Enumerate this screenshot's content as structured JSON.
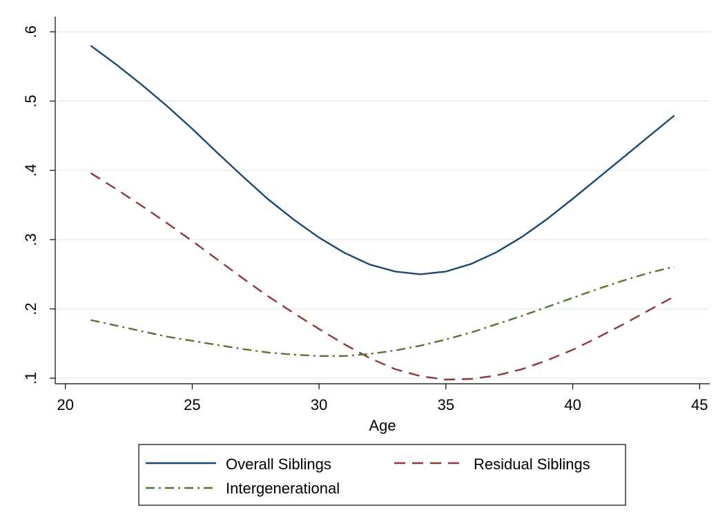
{
  "chart_data": {
    "type": "line",
    "title": "",
    "xlabel": "Age",
    "ylabel": "",
    "xlim": [
      19.6,
      45.4
    ],
    "ylim": [
      0.092,
      0.62
    ],
    "grid": true,
    "legend_position": "bottom",
    "xticks": [
      {
        "value": 20,
        "label": "20"
      },
      {
        "value": 25,
        "label": "25"
      },
      {
        "value": 30,
        "label": "30"
      },
      {
        "value": 35,
        "label": "35"
      },
      {
        "value": 40,
        "label": "40"
      },
      {
        "value": 45,
        "label": "45"
      }
    ],
    "yticks": [
      {
        "value": 0.1,
        "label": ".1"
      },
      {
        "value": 0.2,
        "label": ".2"
      },
      {
        "value": 0.3,
        "label": ".3"
      },
      {
        "value": 0.4,
        "label": ".4"
      },
      {
        "value": 0.5,
        "label": ".5"
      },
      {
        "value": 0.6,
        "label": ".6"
      }
    ],
    "x": [
      21,
      22,
      23,
      24,
      25,
      26,
      27,
      28,
      29,
      30,
      31,
      32,
      33,
      34,
      35,
      36,
      37,
      38,
      39,
      40,
      41,
      42,
      43,
      44
    ],
    "series": [
      {
        "name": "Overall Siblings",
        "color": "#1a476f",
        "dash": "solid",
        "values": [
          0.58,
          0.553,
          0.524,
          0.493,
          0.46,
          0.425,
          0.391,
          0.358,
          0.329,
          0.303,
          0.281,
          0.264,
          0.254,
          0.25,
          0.254,
          0.265,
          0.282,
          0.304,
          0.33,
          0.359,
          0.389,
          0.419,
          0.449,
          0.479
        ]
      },
      {
        "name": "Residual Siblings",
        "color": "#90353b",
        "dash": "dash",
        "values": [
          0.396,
          0.373,
          0.349,
          0.324,
          0.298,
          0.271,
          0.244,
          0.218,
          0.194,
          0.171,
          0.149,
          0.129,
          0.113,
          0.103,
          0.098,
          0.099,
          0.104,
          0.113,
          0.126,
          0.141,
          0.159,
          0.178,
          0.198,
          0.218
        ]
      },
      {
        "name": "Intergenerational",
        "color": "#55752f",
        "dash": "dashdot",
        "values": [
          0.184,
          0.176,
          0.168,
          0.16,
          0.154,
          0.148,
          0.142,
          0.137,
          0.134,
          0.132,
          0.132,
          0.135,
          0.14,
          0.147,
          0.156,
          0.166,
          0.178,
          0.19,
          0.203,
          0.216,
          0.229,
          0.241,
          0.252,
          0.261
        ]
      }
    ]
  }
}
